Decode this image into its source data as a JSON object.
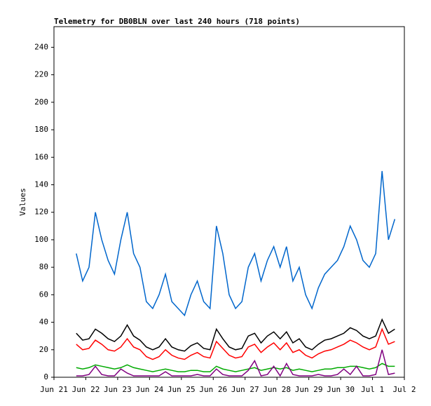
{
  "chart_data": {
    "type": "line",
    "title": "Telemetry for DB0BLN over last 240 hours (718 points)",
    "ylabel": "Values",
    "x": [
      0.7,
      0.9,
      1.1,
      1.3,
      1.5,
      1.7,
      1.9,
      2.1,
      2.3,
      2.5,
      2.7,
      2.9,
      3.1,
      3.3,
      3.5,
      3.7,
      3.9,
      4.1,
      4.3,
      4.5,
      4.7,
      4.9,
      5.1,
      5.3,
      5.5,
      5.7,
      5.9,
      6.1,
      6.3,
      6.5,
      6.7,
      6.9,
      7.1,
      7.3,
      7.5,
      7.7,
      7.9,
      8.1,
      8.3,
      8.5,
      8.7,
      8.9,
      9.1,
      9.3,
      9.5,
      9.7,
      9.9,
      10.1,
      10.3,
      10.5,
      10.7
    ],
    "series": [
      {
        "color": "#0066cc",
        "values": [
          90,
          70,
          80,
          120,
          100,
          85,
          75,
          100,
          120,
          90,
          80,
          55,
          50,
          60,
          75,
          55,
          50,
          45,
          60,
          70,
          55,
          50,
          110,
          90,
          60,
          50,
          55,
          80,
          90,
          70,
          85,
          95,
          80,
          95,
          70,
          80,
          60,
          50,
          65,
          75,
          80,
          85,
          95,
          110,
          100,
          85,
          80,
          90,
          150,
          100,
          115
        ]
      },
      {
        "color": "#000000",
        "values": [
          32,
          27,
          28,
          35,
          32,
          28,
          26,
          30,
          38,
          30,
          27,
          22,
          20,
          22,
          28,
          22,
          20,
          19,
          23,
          25,
          21,
          20,
          35,
          28,
          22,
          20,
          21,
          30,
          32,
          25,
          30,
          33,
          28,
          33,
          25,
          28,
          22,
          20,
          24,
          27,
          28,
          30,
          32,
          36,
          34,
          30,
          28,
          30,
          42,
          32,
          35
        ]
      },
      {
        "color": "#ff0000",
        "values": [
          24,
          20,
          21,
          27,
          24,
          20,
          19,
          22,
          28,
          22,
          20,
          15,
          13,
          15,
          20,
          16,
          14,
          13,
          16,
          18,
          15,
          14,
          26,
          21,
          16,
          14,
          15,
          22,
          24,
          18,
          22,
          25,
          20,
          25,
          18,
          20,
          16,
          14,
          17,
          19,
          20,
          22,
          24,
          27,
          25,
          22,
          20,
          22,
          35,
          24,
          26
        ]
      },
      {
        "color": "#00aa00",
        "values": [
          7,
          6,
          7,
          9,
          8,
          7,
          6,
          7,
          9,
          7,
          6,
          5,
          4,
          5,
          6,
          5,
          4,
          4,
          5,
          5,
          4,
          4,
          8,
          6,
          5,
          4,
          5,
          6,
          7,
          5,
          6,
          7,
          6,
          7,
          5,
          6,
          5,
          4,
          5,
          6,
          6,
          7,
          7,
          8,
          8,
          7,
          6,
          7,
          10,
          8,
          8
        ]
      },
      {
        "color": "#800080",
        "values": [
          1,
          1,
          2,
          8,
          2,
          1,
          1,
          6,
          3,
          1,
          1,
          1,
          1,
          1,
          4,
          1,
          1,
          1,
          1,
          2,
          1,
          1,
          6,
          2,
          1,
          1,
          1,
          5,
          12,
          1,
          2,
          8,
          1,
          10,
          2,
          1,
          1,
          1,
          2,
          1,
          1,
          2,
          6,
          2,
          8,
          1,
          1,
          2,
          20,
          2,
          3
        ]
      }
    ],
    "xlim": [
      0,
      11
    ],
    "xticks": [
      {
        "value": 0,
        "label": "Jun 21"
      },
      {
        "value": 1,
        "label": "Jun 22"
      },
      {
        "value": 2,
        "label": "Jun 23"
      },
      {
        "value": 3,
        "label": "Jun 24"
      },
      {
        "value": 4,
        "label": "Jun 25"
      },
      {
        "value": 5,
        "label": "Jun 26"
      },
      {
        "value": 6,
        "label": "Jun 27"
      },
      {
        "value": 7,
        "label": "Jun 28"
      },
      {
        "value": 8,
        "label": "Jun 29"
      },
      {
        "value": 9,
        "label": "Jun 30"
      },
      {
        "value": 10,
        "label": "Jul 1"
      },
      {
        "value": 11,
        "label": "Jul 2"
      }
    ],
    "ylim": [
      0,
      255
    ],
    "yticks": [
      0,
      20,
      40,
      60,
      80,
      100,
      120,
      140,
      160,
      180,
      200,
      220,
      240
    ]
  }
}
